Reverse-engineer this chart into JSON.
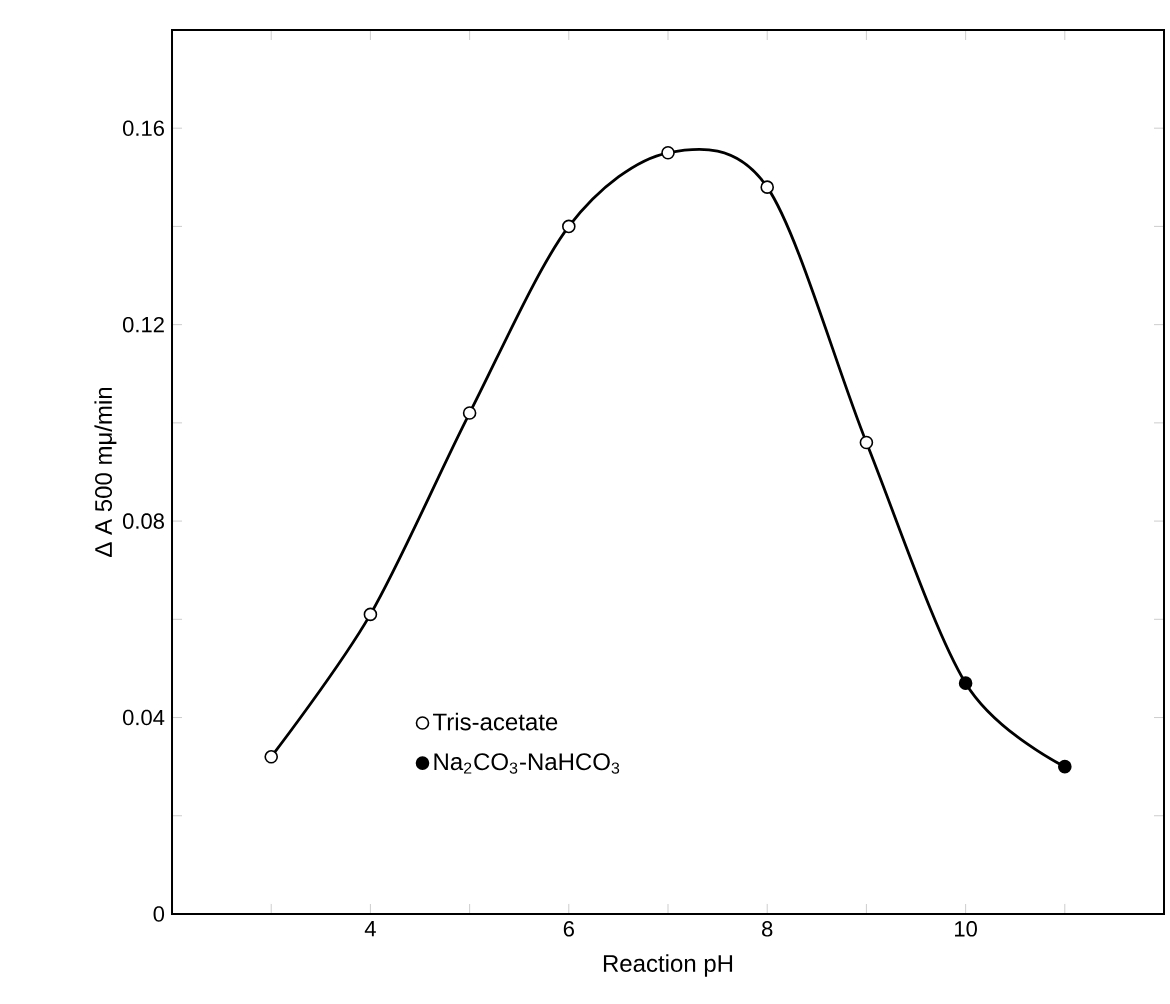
{
  "chart_data": {
    "type": "line",
    "xlabel": "Reaction pH",
    "ylabel": "Δ A 500 mμ/min",
    "xlim": [
      2,
      12
    ],
    "ylim": [
      0,
      0.18
    ],
    "xticks": [
      {
        "value": 3,
        "label": null
      },
      4,
      {
        "value": 5,
        "label": null
      },
      6,
      {
        "value": 7,
        "label": null
      },
      8,
      {
        "value": 9,
        "label": null
      },
      10,
      {
        "value": 11,
        "label": null
      }
    ],
    "yticks": [
      0,
      {
        "value": 0.02,
        "label": null
      },
      0.04,
      {
        "value": 0.06,
        "label": null
      },
      0.08,
      {
        "value": 0.1,
        "label": null
      },
      0.12,
      {
        "value": 0.14,
        "label": null
      },
      0.16
    ],
    "grid": false,
    "legend": "bottom left",
    "series": [
      {
        "color": "#000000",
        "marker": "none",
        "line_style": "solid",
        "x": [
          3,
          4,
          5,
          6,
          7,
          8,
          9,
          10,
          11
        ],
        "values": [
          0.032,
          0.061,
          0.102,
          0.14,
          0.155,
          0.148,
          0.096,
          0.047,
          0.03
        ]
      },
      {
        "name": "Tris-acetate",
        "type": "scatter",
        "color": "#ffffff",
        "marker": "circle",
        "x": [
          3,
          4,
          5,
          6,
          7,
          8,
          9
        ],
        "values": [
          0.032,
          0.061,
          0.102,
          0.14,
          0.155,
          0.148,
          0.096
        ]
      },
      {
        "name": "Na$_{2}$CO$_{3}$-NaHCO$_{3}$",
        "type": "scatter",
        "color": "#000000",
        "marker": "circle",
        "x": [
          10,
          11
        ],
        "values": [
          0.047,
          0.03
        ]
      }
    ]
  }
}
